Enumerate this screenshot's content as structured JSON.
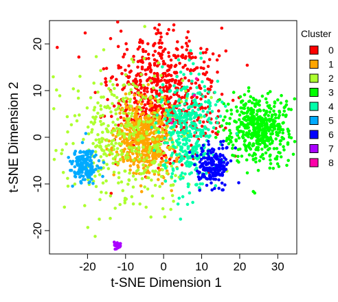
{
  "chart_data": {
    "type": "scatter",
    "title": "",
    "xlabel": "t-SNE Dimension 1",
    "ylabel": "t-SNE Dimension 2",
    "xlim": [
      -30,
      35
    ],
    "ylim": [
      -25,
      25
    ],
    "xticks": [
      -20,
      -10,
      0,
      10,
      20,
      30
    ],
    "yticks": [
      -20,
      -10,
      0,
      10,
      20
    ],
    "grid": false,
    "legend": {
      "title": "Cluster",
      "placement": "right"
    },
    "series": [
      {
        "name": "0",
        "color": "#FF0000",
        "points": 650,
        "center": [
          0,
          9
        ],
        "spread": [
          7,
          7
        ]
      },
      {
        "name": "1",
        "color": "#FFA500",
        "points": 520,
        "center": [
          -5,
          0
        ],
        "spread": [
          3.5,
          4
        ]
      },
      {
        "name": "2",
        "color": "#ADFF2F",
        "points": 420,
        "center": [
          -10,
          0
        ],
        "spread": [
          8,
          8
        ]
      },
      {
        "name": "3",
        "color": "#00FF00",
        "points": 480,
        "center": [
          25,
          2
        ],
        "spread": [
          3.8,
          3.4
        ]
      },
      {
        "name": "4",
        "color": "#00FFAA",
        "points": 380,
        "center": [
          7,
          1
        ],
        "spread": [
          4,
          6
        ]
      },
      {
        "name": "5",
        "color": "#00AAFF",
        "points": 170,
        "center": [
          -21,
          -6
        ],
        "spread": [
          1.8,
          1.8
        ]
      },
      {
        "name": "6",
        "color": "#0000FF",
        "points": 200,
        "center": [
          13,
          -6
        ],
        "spread": [
          2,
          2
        ]
      },
      {
        "name": "7",
        "color": "#AA00FF",
        "points": 22,
        "center": [
          -12,
          -23
        ],
        "spread": [
          0.6,
          0.5
        ]
      },
      {
        "name": "8",
        "color": "#FF00AA",
        "points": 4,
        "center": [
          1,
          8
        ],
        "spread": [
          4,
          4
        ]
      }
    ]
  }
}
